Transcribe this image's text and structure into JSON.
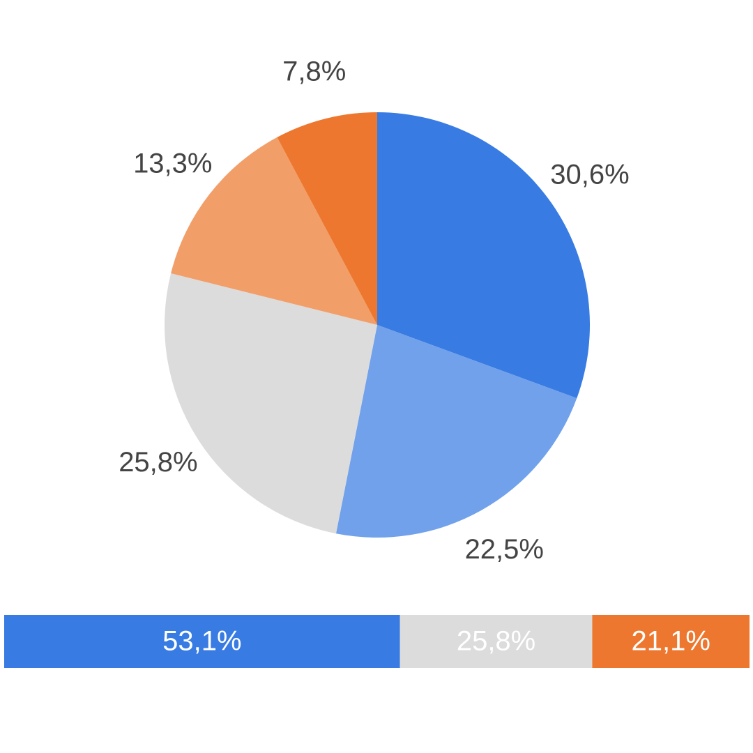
{
  "chart_data": [
    {
      "type": "pie",
      "values": [
        30.6,
        22.5,
        25.8,
        13.3,
        7.8
      ],
      "value_labels": [
        "30,6%",
        "22,5%",
        "25,8%",
        "13,3%",
        "7,8%"
      ],
      "colors": [
        "#377be3",
        "#70a1ea",
        "#dcdcdc",
        "#f29e69",
        "#ed772e"
      ]
    },
    {
      "type": "stacked-bar",
      "values": [
        53.1,
        25.8,
        21.1
      ],
      "value_labels": [
        "53,1%",
        "25,8%",
        "21,1%"
      ],
      "colors": [
        "#377be3",
        "#dcdcdc",
        "#ed772e"
      ]
    }
  ]
}
